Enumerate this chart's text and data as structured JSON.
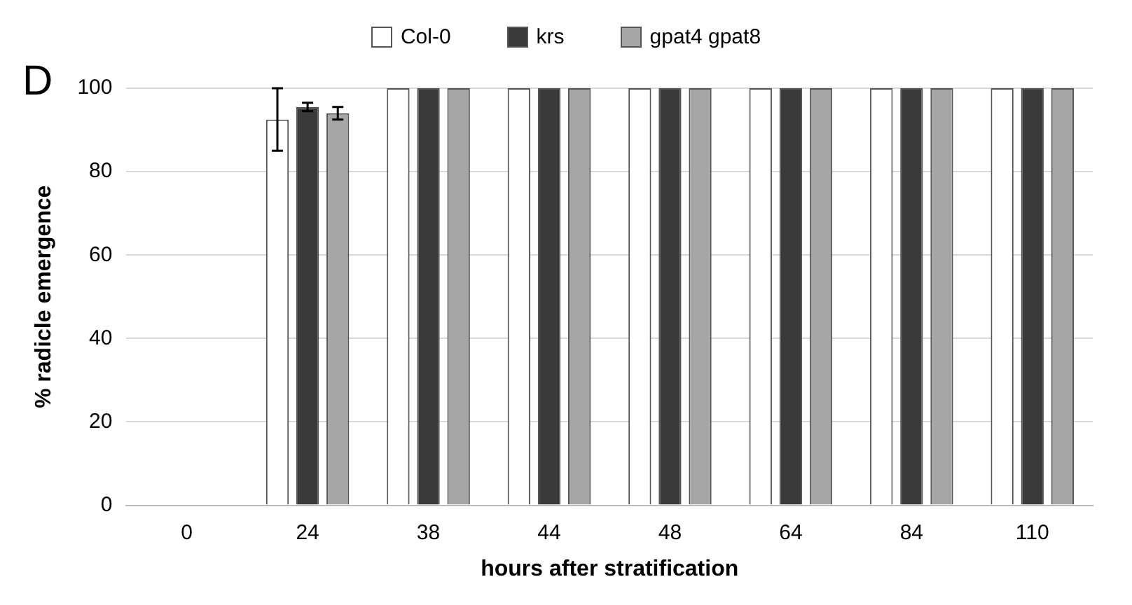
{
  "chart_data": {
    "type": "bar",
    "xlabel": "hours after stratification",
    "ylabel": "% radicle emergence",
    "annotations": [
      "D"
    ],
    "categories": [
      "0",
      "24",
      "38",
      "44",
      "48",
      "64",
      "84",
      "110"
    ],
    "series": [
      {
        "name": "Col-0",
        "color": "#ffffff",
        "values": [
          0,
          92.5,
          100,
          100,
          100,
          100,
          100,
          100
        ],
        "errors": [
          null,
          7.5,
          null,
          null,
          null,
          null,
          null,
          null
        ]
      },
      {
        "name": "krs",
        "color": "#3a3a3a",
        "values": [
          0,
          95.5,
          100,
          100,
          100,
          100,
          100,
          100
        ],
        "errors": [
          null,
          1,
          null,
          null,
          null,
          null,
          null,
          null
        ]
      },
      {
        "name": "gpat4 gpat8",
        "color": "#a6a6a6",
        "values": [
          0,
          94,
          100,
          100,
          100,
          100,
          100,
          100
        ],
        "errors": [
          null,
          1.5,
          null,
          null,
          null,
          null,
          null,
          null
        ]
      }
    ],
    "ylim": [
      0,
      100
    ],
    "yticks": [
      0,
      20,
      40,
      60,
      80,
      100
    ],
    "grid": "y",
    "legend": "top"
  }
}
